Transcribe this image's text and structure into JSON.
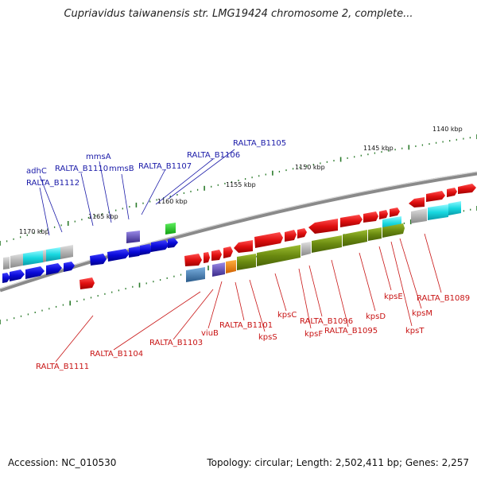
{
  "title": "Cupriavidus taiwanensis str. LMG19424 chromosome 2, complete...",
  "accession": "Accession: NC_010530",
  "stats": "Topology: circular; Length: 2,502,411 bp; Genes: 2,257",
  "ticks": [
    {
      "label": "1140 kbp"
    },
    {
      "label": "1145 kbp"
    },
    {
      "label": "1150 kbp"
    },
    {
      "label": "1155 kbp"
    },
    {
      "label": "1160 kbp"
    },
    {
      "label": "1165 kbp"
    },
    {
      "label": "1170 kbp"
    }
  ],
  "labels_top": [
    "RALTA_B1105",
    "RALTA_B1106",
    "RALTA_B1107",
    "mmsB",
    "mmsA",
    "RALTA_B1110",
    "adhC",
    "RALTA_B1112"
  ],
  "labels_bottom": [
    "RALTA_B1111",
    "RALTA_B1104",
    "RALTA_B1103",
    "viuB",
    "RALTA_B1101",
    "kpsS",
    "kpsC",
    "kpsF",
    "RALTA_B1096",
    "RALTA_B1095",
    "kpsD",
    "kpsE",
    "kpsT",
    "kpsM",
    "RALTA_B1089"
  ],
  "colors": {
    "label_blue": "#1a1aa8",
    "label_red": "#c81414",
    "gene_red": "#e01010",
    "gene_blue": "#0a0ad8",
    "gene_olive": "#6a8a10",
    "gene_cyan": "#18d8e0",
    "gene_gray": "#b4b4b4",
    "tick_green": "#2a7a2a"
  }
}
